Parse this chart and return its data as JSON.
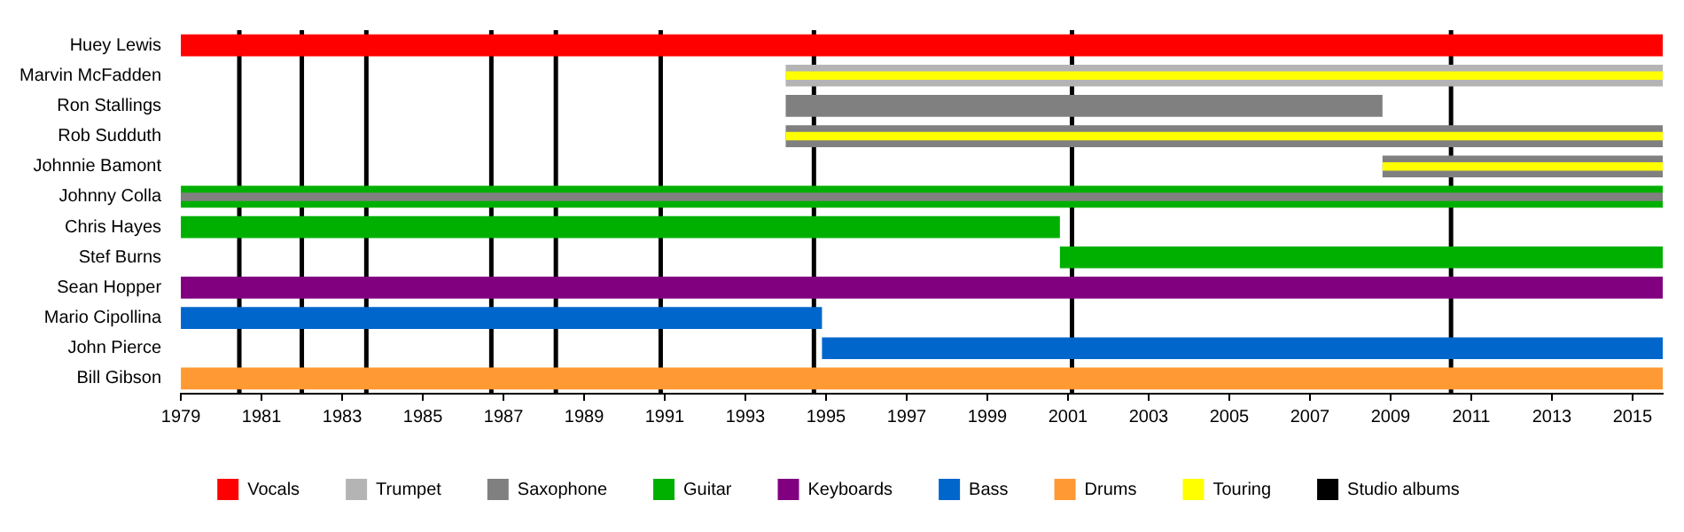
{
  "chart_data": {
    "type": "bar",
    "orientation": "horizontal",
    "categories": [
      "Huey Lewis",
      "Marvin McFadden",
      "Ron Stallings",
      "Rob Sudduth",
      "Johnnie Bamont",
      "Johnny Colla",
      "Chris Hayes",
      "Stef Burns",
      "Sean Hopper",
      "Mario Cipollina",
      "John Pierce",
      "Bill Gibson"
    ],
    "series": [
      {
        "name": "Vocals",
        "color": "#ff0000",
        "base": [
          1979,
          null,
          null,
          null,
          null,
          null,
          null,
          null,
          null,
          null,
          null,
          null
        ],
        "values": [
          36.75,
          null,
          null,
          null,
          null,
          null,
          null,
          null,
          null,
          null,
          null,
          null
        ]
      },
      {
        "name": "Trumpet",
        "color": "#b4b4b4",
        "base": [
          null,
          1994,
          null,
          null,
          null,
          null,
          null,
          null,
          null,
          null,
          null,
          null
        ],
        "values": [
          null,
          21.75,
          null,
          null,
          null,
          null,
          null,
          null,
          null,
          null,
          null,
          null
        ]
      },
      {
        "name": "Saxophone",
        "color": "#808080",
        "base": [
          null,
          null,
          1994,
          1994,
          2008.8,
          null,
          null,
          null,
          null,
          null,
          null,
          null
        ],
        "values": [
          null,
          null,
          14.8,
          21.75,
          6.95,
          null,
          null,
          null,
          null,
          null,
          null,
          null
        ]
      },
      {
        "name": "Guitar",
        "color": "#00b000",
        "base": [
          null,
          null,
          null,
          null,
          null,
          1979,
          1979,
          2000.8,
          null,
          null,
          null,
          null
        ],
        "values": [
          null,
          null,
          null,
          null,
          null,
          36.75,
          21.8,
          14.95,
          null,
          null,
          null,
          null
        ]
      },
      {
        "color": "#808080",
        "base": [
          null,
          null,
          null,
          null,
          null,
          1979,
          null,
          null,
          null,
          null,
          null,
          null
        ],
        "values": [
          null,
          null,
          null,
          null,
          null,
          36.75,
          null,
          null,
          null,
          null,
          null,
          null
        ]
      },
      {
        "name": "Keyboards",
        "color": "#800080",
        "base": [
          null,
          null,
          null,
          null,
          null,
          null,
          null,
          null,
          1979,
          null,
          null,
          null
        ],
        "values": [
          null,
          null,
          null,
          null,
          null,
          null,
          null,
          null,
          36.75,
          null,
          null,
          null
        ]
      },
      {
        "name": "Bass",
        "color": "#0066cc",
        "base": [
          null,
          null,
          null,
          null,
          null,
          null,
          null,
          null,
          null,
          1979,
          1994.9,
          null
        ],
        "values": [
          null,
          null,
          null,
          null,
          null,
          null,
          null,
          null,
          null,
          15.9,
          20.85,
          null
        ]
      },
      {
        "name": "Drums",
        "color": "#ff9933",
        "base": [
          null,
          null,
          null,
          null,
          null,
          null,
          null,
          null,
          null,
          null,
          null,
          1979
        ],
        "values": [
          null,
          null,
          null,
          null,
          null,
          null,
          null,
          null,
          null,
          null,
          null,
          36.75
        ]
      },
      {
        "name": "Touring",
        "color": "#ffff00",
        "base": [
          null,
          1994,
          null,
          1994,
          2008.8,
          null,
          null,
          null,
          null,
          null,
          null,
          null
        ],
        "values": [
          null,
          21.75,
          null,
          21.75,
          6.95,
          null,
          null,
          null,
          null,
          null,
          null,
          null
        ]
      }
    ],
    "ref_lines": [
      {
        "axis": "x",
        "value": 1980.45,
        "label": "Studio albums",
        "color": "#000000"
      },
      {
        "axis": "x",
        "value": 1982,
        "color": "#000000"
      },
      {
        "axis": "x",
        "value": 1983.6,
        "color": "#000000"
      },
      {
        "axis": "x",
        "value": 1986.7,
        "color": "#000000"
      },
      {
        "axis": "x",
        "value": 1988.3,
        "color": "#000000"
      },
      {
        "axis": "x",
        "value": 1990.9,
        "color": "#000000"
      },
      {
        "axis": "x",
        "value": 1994.7,
        "color": "#000000"
      },
      {
        "axis": "x",
        "value": 2001.1,
        "color": "#000000"
      },
      {
        "axis": "x",
        "value": 2010.5,
        "color": "#000000"
      }
    ],
    "xlim": [
      1979,
      2015.75
    ],
    "xticks": [
      1979,
      1981,
      1983,
      1985,
      1987,
      1989,
      1991,
      1993,
      1995,
      1997,
      1999,
      2001,
      2003,
      2005,
      2007,
      2009,
      2011,
      2013,
      2015
    ],
    "legend": "bottom"
  }
}
